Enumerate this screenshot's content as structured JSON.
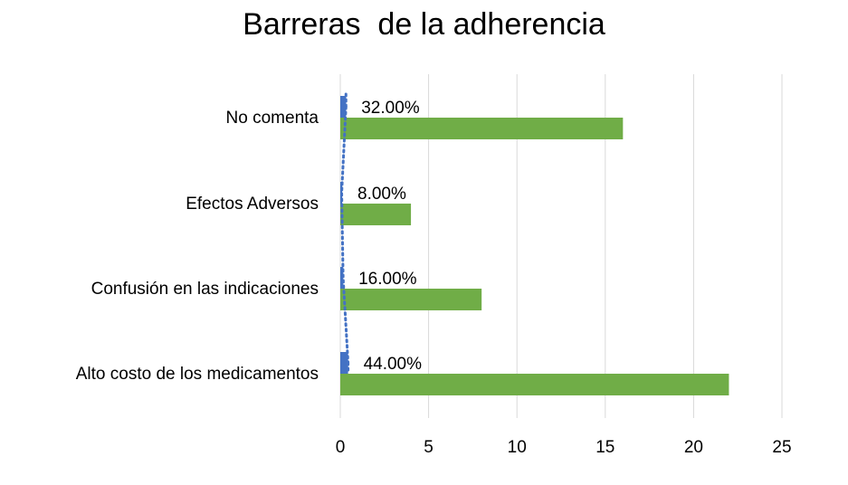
{
  "chart_data": {
    "type": "bar",
    "orientation": "horizontal",
    "title": "Barreras  de la adherencia",
    "categories": [
      "No comenta",
      "Efectos Adversos",
      "Confusión en las indicaciones",
      "Alto costo de los medicamentos"
    ],
    "series": [
      {
        "color": "#4472c4",
        "values": [
          0.32,
          0.08,
          0.16,
          0.44
        ],
        "labels": [
          "32.00%",
          "8.00%",
          "16.00%",
          "44.00%"
        ]
      },
      {
        "color": "#70ad47",
        "values": [
          16,
          4,
          8,
          22
        ]
      }
    ],
    "trendline": {
      "series_index": 0,
      "style": "dotted",
      "color": "#4472c4"
    },
    "xticks": [
      "0",
      "5",
      "10",
      "15",
      "20",
      "25"
    ],
    "xlim": [
      0,
      25
    ],
    "grid": true,
    "legend": false
  }
}
